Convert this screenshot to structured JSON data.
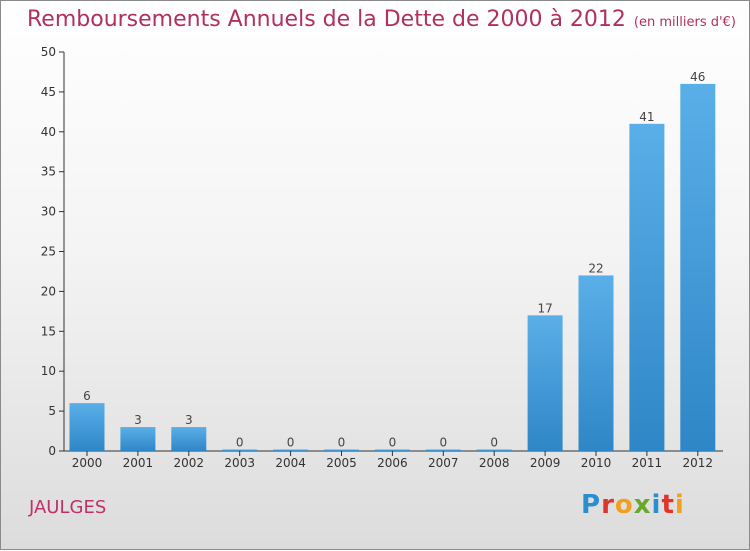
{
  "page": {
    "title": "Remboursements Annuels de la Dette de 2000 à 2012",
    "unit": "(en milliers d'€)",
    "commune": "JAULGES",
    "logo_text": "Proxiti",
    "logo_colors": [
      "#2a8fd0",
      "#e0352a",
      "#f0a020",
      "#6aa82a",
      "#2a8fd0",
      "#e0352a",
      "#f0a020"
    ]
  },
  "chart_data": {
    "type": "bar",
    "categories": [
      "2000",
      "2001",
      "2002",
      "2003",
      "2004",
      "2005",
      "2006",
      "2007",
      "2008",
      "2009",
      "2010",
      "2011",
      "2012"
    ],
    "values": [
      6,
      3,
      3,
      0,
      0,
      0,
      0,
      0,
      0,
      17,
      22,
      41,
      46
    ],
    "data_labels": [
      "6",
      "3",
      "3",
      "0",
      "0",
      "0",
      "0",
      "0",
      "0",
      "17",
      "22",
      "41",
      "46"
    ],
    "yticks": [
      "0",
      "5",
      "10",
      "15",
      "20",
      "25",
      "30",
      "35",
      "40",
      "45",
      "50"
    ],
    "ylim": [
      0,
      50
    ],
    "title": "Remboursements Annuels de la Dette de 2000 à 2012",
    "xlabel": "",
    "ylabel": "",
    "grid": false,
    "colors": {
      "bar_top": "#5aafe8",
      "bar_bottom": "#2f86c6",
      "label": "#444444",
      "axis": "#333333"
    }
  }
}
